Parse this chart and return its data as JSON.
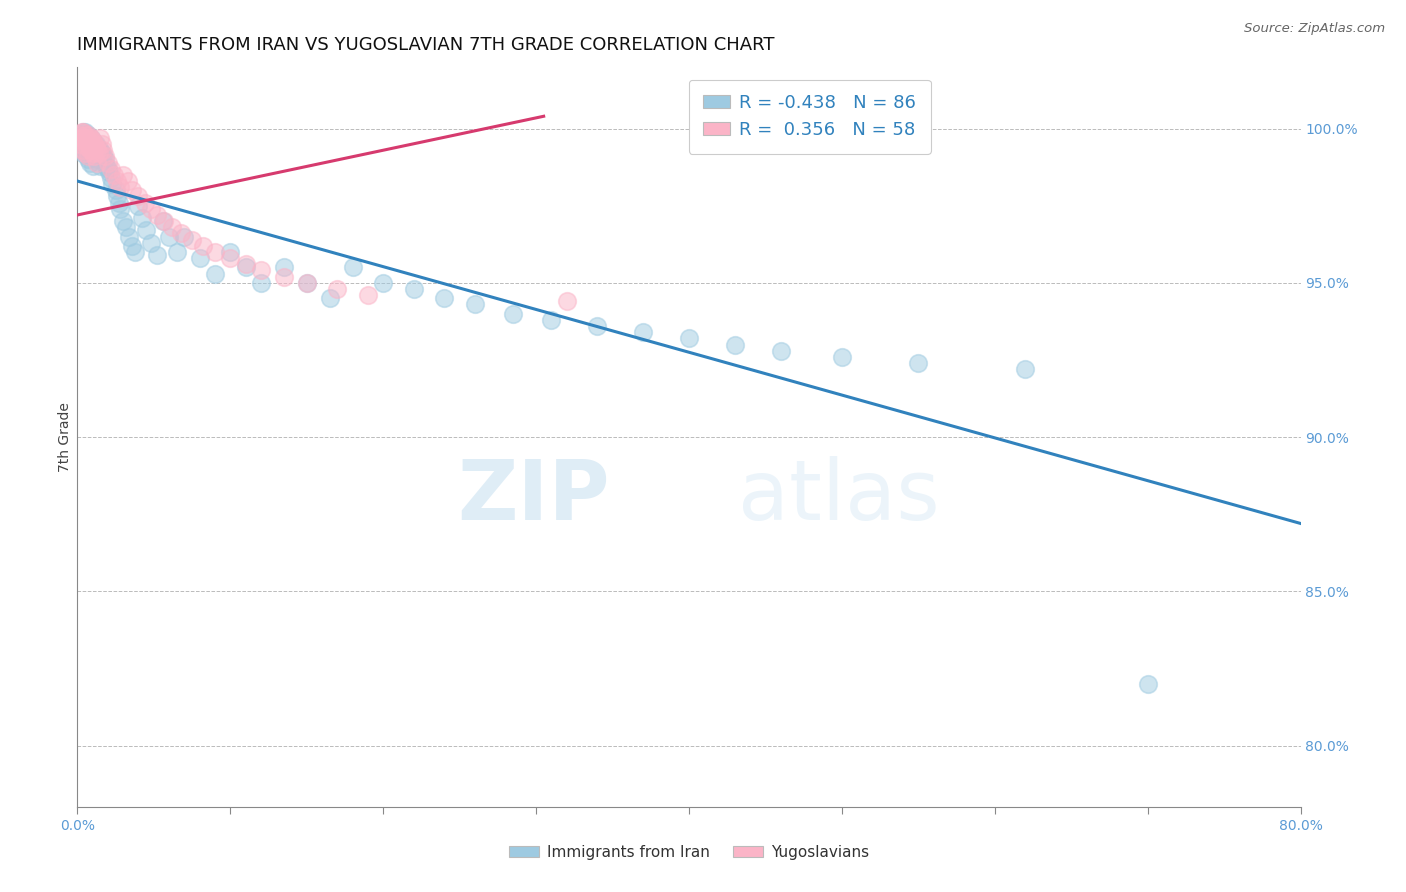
{
  "title": "IMMIGRANTS FROM IRAN VS YUGOSLAVIAN 7TH GRADE CORRELATION CHART",
  "source": "Source: ZipAtlas.com",
  "ylabel": "7th Grade",
  "right_ytick_vals": [
    1.0,
    0.95,
    0.9,
    0.85,
    0.8
  ],
  "right_yticklabels": [
    "100.0%",
    "95.0%",
    "90.0%",
    "85.0%",
    "80.0%"
  ],
  "legend_label1": "Immigrants from Iran",
  "legend_label2": "Yugoslavians",
  "blue_color": "#9ecae1",
  "pink_color": "#fbb4c7",
  "trend_blue": "#3182bd",
  "trend_pink": "#d63a6e",
  "xlim": [
    0.0,
    0.8
  ],
  "ylim": [
    0.78,
    1.02
  ],
  "blue_scatter_x": [
    0.001,
    0.002,
    0.002,
    0.002,
    0.003,
    0.003,
    0.003,
    0.004,
    0.004,
    0.004,
    0.005,
    0.005,
    0.005,
    0.006,
    0.006,
    0.006,
    0.007,
    0.007,
    0.007,
    0.008,
    0.008,
    0.008,
    0.009,
    0.009,
    0.01,
    0.01,
    0.01,
    0.011,
    0.011,
    0.012,
    0.012,
    0.013,
    0.013,
    0.014,
    0.015,
    0.015,
    0.016,
    0.017,
    0.018,
    0.019,
    0.02,
    0.021,
    0.022,
    0.023,
    0.025,
    0.026,
    0.027,
    0.028,
    0.03,
    0.032,
    0.034,
    0.036,
    0.038,
    0.04,
    0.042,
    0.045,
    0.048,
    0.052,
    0.056,
    0.06,
    0.065,
    0.07,
    0.08,
    0.09,
    0.1,
    0.11,
    0.12,
    0.135,
    0.15,
    0.165,
    0.18,
    0.2,
    0.22,
    0.24,
    0.26,
    0.285,
    0.31,
    0.34,
    0.37,
    0.4,
    0.43,
    0.46,
    0.5,
    0.55,
    0.62,
    0.7
  ],
  "blue_scatter_y": [
    0.998,
    0.997,
    0.995,
    0.993,
    0.998,
    0.996,
    0.994,
    0.999,
    0.997,
    0.992,
    0.999,
    0.997,
    0.993,
    0.998,
    0.996,
    0.991,
    0.998,
    0.996,
    0.99,
    0.997,
    0.995,
    0.989,
    0.997,
    0.994,
    0.996,
    0.994,
    0.988,
    0.995,
    0.993,
    0.995,
    0.992,
    0.994,
    0.99,
    0.993,
    0.993,
    0.988,
    0.992,
    0.991,
    0.99,
    0.988,
    0.987,
    0.986,
    0.984,
    0.982,
    0.98,
    0.978,
    0.976,
    0.974,
    0.97,
    0.968,
    0.965,
    0.962,
    0.96,
    0.975,
    0.971,
    0.967,
    0.963,
    0.959,
    0.97,
    0.965,
    0.96,
    0.965,
    0.958,
    0.953,
    0.96,
    0.955,
    0.95,
    0.955,
    0.95,
    0.945,
    0.955,
    0.95,
    0.948,
    0.945,
    0.943,
    0.94,
    0.938,
    0.936,
    0.934,
    0.932,
    0.93,
    0.928,
    0.926,
    0.924,
    0.922,
    0.82
  ],
  "pink_scatter_x": [
    0.001,
    0.002,
    0.002,
    0.003,
    0.003,
    0.004,
    0.004,
    0.004,
    0.005,
    0.005,
    0.005,
    0.006,
    0.006,
    0.007,
    0.007,
    0.007,
    0.008,
    0.008,
    0.009,
    0.009,
    0.01,
    0.01,
    0.011,
    0.011,
    0.012,
    0.013,
    0.013,
    0.014,
    0.015,
    0.016,
    0.017,
    0.018,
    0.02,
    0.022,
    0.024,
    0.026,
    0.028,
    0.03,
    0.033,
    0.036,
    0.04,
    0.044,
    0.048,
    0.052,
    0.057,
    0.062,
    0.068,
    0.075,
    0.082,
    0.09,
    0.1,
    0.11,
    0.12,
    0.135,
    0.15,
    0.17,
    0.19,
    0.32
  ],
  "pink_scatter_y": [
    0.997,
    0.998,
    0.995,
    0.999,
    0.996,
    0.999,
    0.997,
    0.993,
    0.998,
    0.996,
    0.992,
    0.997,
    0.994,
    0.998,
    0.995,
    0.991,
    0.997,
    0.993,
    0.997,
    0.993,
    0.996,
    0.992,
    0.995,
    0.991,
    0.994,
    0.993,
    0.989,
    0.992,
    0.997,
    0.995,
    0.993,
    0.991,
    0.989,
    0.987,
    0.985,
    0.983,
    0.981,
    0.985,
    0.983,
    0.98,
    0.978,
    0.976,
    0.974,
    0.972,
    0.97,
    0.968,
    0.966,
    0.964,
    0.962,
    0.96,
    0.958,
    0.956,
    0.954,
    0.952,
    0.95,
    0.948,
    0.946,
    0.944
  ],
  "blue_trendline_x": [
    0.0,
    0.8
  ],
  "blue_trendline_y": [
    0.983,
    0.872
  ],
  "pink_trendline_x": [
    0.0,
    0.305
  ],
  "pink_trendline_y": [
    0.972,
    1.004
  ],
  "watermark_zip": "ZIP",
  "watermark_atlas": "atlas",
  "R1": "-0.438",
  "N1": "86",
  "R2": "0.356",
  "N2": "58",
  "title_fontsize": 13,
  "tick_fontsize": 10,
  "label_fontsize": 10,
  "legend_fontsize": 13
}
